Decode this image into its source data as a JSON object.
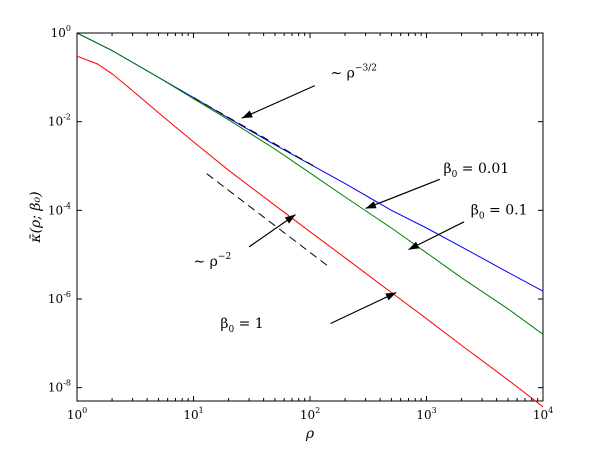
{
  "chart_data": {
    "type": "line",
    "title": "",
    "xlabel": "ρ",
    "ylabel": "κ̄(ρ; β₀)",
    "x_scale": "log",
    "y_scale": "log",
    "xlim": [
      1,
      10000
    ],
    "ylim": [
      5e-09,
      1
    ],
    "grid": false,
    "legend": "none",
    "x_ticks": [
      {
        "value": 1,
        "base": "10",
        "exp": "0"
      },
      {
        "value": 10,
        "base": "10",
        "exp": "1"
      },
      {
        "value": 100,
        "base": "10",
        "exp": "2"
      },
      {
        "value": 1000,
        "base": "10",
        "exp": "3"
      },
      {
        "value": 10000,
        "base": "10",
        "exp": "4"
      }
    ],
    "y_ticks": [
      {
        "value": 1,
        "base": "10",
        "exp": "0"
      },
      {
        "value": 0.01,
        "base": "10",
        "exp": "-2"
      },
      {
        "value": 0.0001,
        "base": "10",
        "exp": "-4"
      },
      {
        "value": 1e-06,
        "base": "10",
        "exp": "-6"
      },
      {
        "value": 1e-08,
        "base": "10",
        "exp": "-8"
      }
    ],
    "series": [
      {
        "name": "β0 = 0.01",
        "color": "#0000ff",
        "x": [
          1,
          2,
          5,
          10,
          20,
          50,
          100,
          200,
          500,
          1000,
          2000,
          5000,
          10000
        ],
        "y": [
          1,
          0.4,
          0.1,
          0.035,
          0.012,
          0.003,
          0.0011,
          0.0004,
          0.0001,
          4e-05,
          1.5e-05,
          4e-06,
          1.5e-06
        ]
      },
      {
        "name": "β0 = 0.1",
        "color": "#008000",
        "x": [
          1,
          2,
          5,
          10,
          20,
          50,
          100,
          200,
          500,
          1000,
          2000,
          5000,
          10000
        ],
        "y": [
          1,
          0.4,
          0.1,
          0.033,
          0.011,
          0.0024,
          0.0007,
          0.0002,
          4e-05,
          1.1e-05,
          3e-06,
          6e-07,
          1.6e-07
        ]
      },
      {
        "name": "β0 = 1",
        "color": "#ff0000",
        "x": [
          1,
          1.5,
          2,
          3,
          5,
          10,
          20,
          50,
          100,
          200,
          500,
          1000,
          2000,
          5000,
          10000
        ],
        "y": [
          0.3,
          0.2,
          0.12,
          0.05,
          0.016,
          0.0035,
          0.0008,
          0.00013,
          3.3e-05,
          8.5e-06,
          1.4e-06,
          3.6e-07,
          9e-08,
          1.5e-08,
          3.7e-09
        ]
      }
    ],
    "reference_lines": [
      {
        "label": "∼ ρ^{-3/2}",
        "slope": -1.5,
        "x": [
          10,
          110
        ],
        "y": [
          0.035,
          0.00097
        ],
        "style": "dashed"
      },
      {
        "label": "∼ ρ^{-2}",
        "slope": -2,
        "x": [
          13,
          150
        ],
        "y": [
          0.00067,
          5e-06
        ],
        "style": "dashed"
      }
    ],
    "annotations": [
      {
        "kind": "rich",
        "segments": [
          {
            "t": "∼ ρ"
          },
          {
            "t": "−3/2",
            "sup": true
          }
        ],
        "text_anchor": [
          150,
          0.1
        ],
        "arrow_from": [
          110,
          0.065
        ],
        "arrow_to": [
          26,
          0.012
        ]
      },
      {
        "kind": "rich",
        "segments": [
          {
            "t": "∼ ρ"
          },
          {
            "t": "−2",
            "sup": true
          }
        ],
        "text_anchor": [
          10,
          5.5e-06
        ],
        "arrow_from": [
          30,
          1.5e-05
        ],
        "arrow_to": [
          75,
          8e-05
        ]
      },
      {
        "kind": "rich",
        "segments": [
          {
            "t": "β"
          },
          {
            "t": "0",
            "sub": true
          },
          {
            "t": " = 0.01"
          }
        ],
        "text_anchor": [
          1400,
          0.0007
        ],
        "arrow_from": [
          1300,
          0.0005
        ],
        "arrow_to": [
          300,
          0.00011
        ]
      },
      {
        "kind": "rich",
        "segments": [
          {
            "t": "β"
          },
          {
            "t": "0",
            "sub": true
          },
          {
            "t": " = 0.1"
          }
        ],
        "text_anchor": [
          2400,
          8e-05
        ],
        "arrow_from": [
          2100,
          5.5e-05
        ],
        "arrow_to": [
          700,
          1.3e-05
        ]
      },
      {
        "kind": "rich",
        "segments": [
          {
            "t": "β"
          },
          {
            "t": "0",
            "sub": true
          },
          {
            "t": " = 1"
          }
        ],
        "text_anchor": [
          17,
          2.2e-07
        ],
        "arrow_from": [
          150,
          2.8e-07
        ],
        "arrow_to": [
          550,
          1.4e-06
        ]
      }
    ]
  }
}
